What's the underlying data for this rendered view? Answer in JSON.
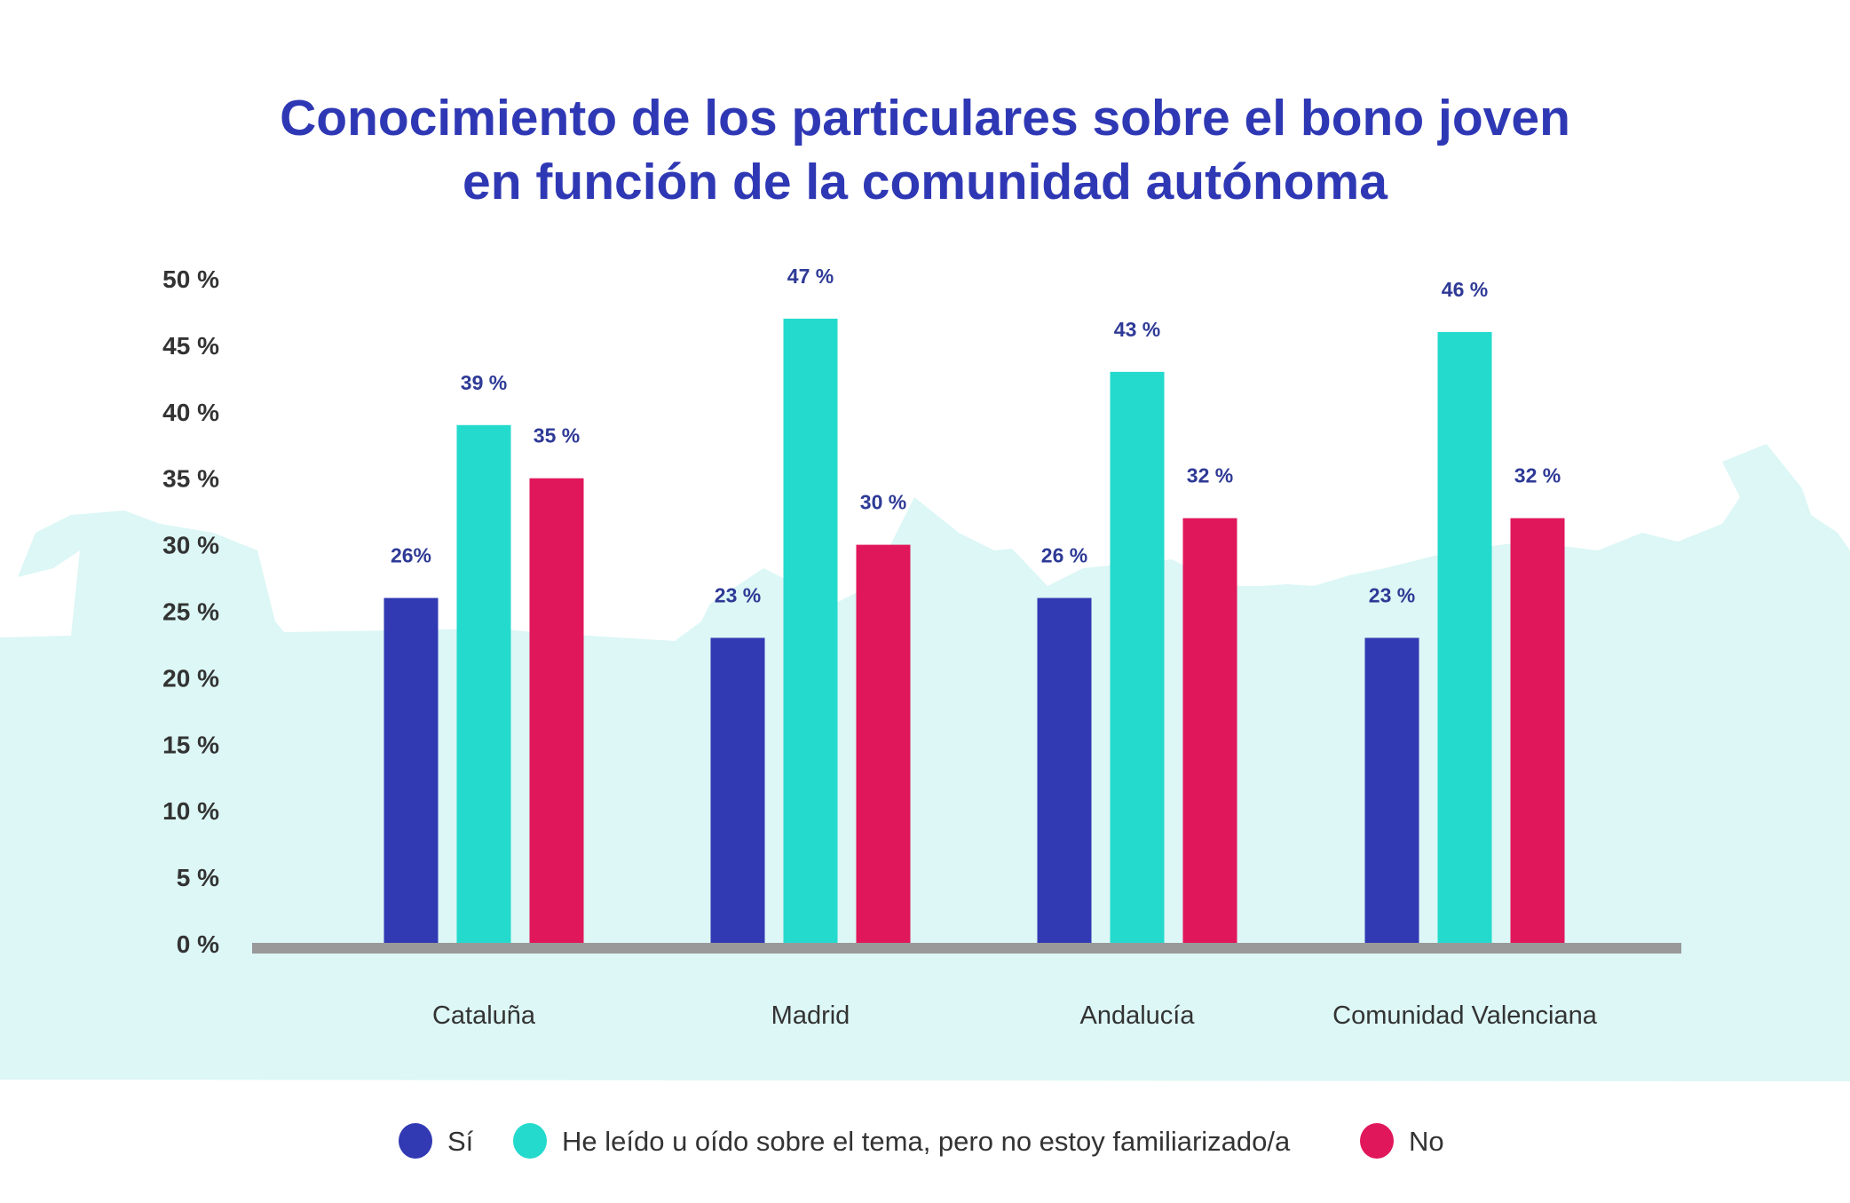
{
  "chart_data": {
    "type": "bar",
    "title": [
      "Conocimiento de los particulares sobre el bono joven",
      "en función de la comunidad autónoma"
    ],
    "categories": [
      "Cataluña",
      "Madrid",
      "Andalucía",
      "Comunidad Valenciana"
    ],
    "series": [
      {
        "name": "Sí",
        "color": "#3139b3",
        "values": [
          26,
          23,
          26,
          23
        ],
        "labels": [
          "26%",
          "23 %",
          "26 %",
          "23 %"
        ]
      },
      {
        "name": "He leído u oído sobre el tema, pero no estoy familiarizado/a",
        "color": "#24dacd",
        "values": [
          39,
          47,
          43,
          46
        ],
        "labels": [
          "39 %",
          "47 %",
          "43 %",
          "46 %"
        ]
      },
      {
        "name": "No",
        "color": "#e1175b",
        "values": [
          35,
          30,
          32,
          32
        ],
        "labels": [
          "35 %",
          "30 %",
          "32 %",
          "32 %"
        ]
      }
    ],
    "ylim": [
      0,
      50
    ],
    "yticks": [
      "0 %",
      "5 %",
      "10 %",
      "15 %",
      "20 %",
      "25 %",
      "30 %",
      "35 %",
      "40 %",
      "45 %",
      "50 %"
    ],
    "grid": false,
    "legend_position": "bottom",
    "background_color": "#dcf7f5",
    "axis_color": "#999999"
  }
}
